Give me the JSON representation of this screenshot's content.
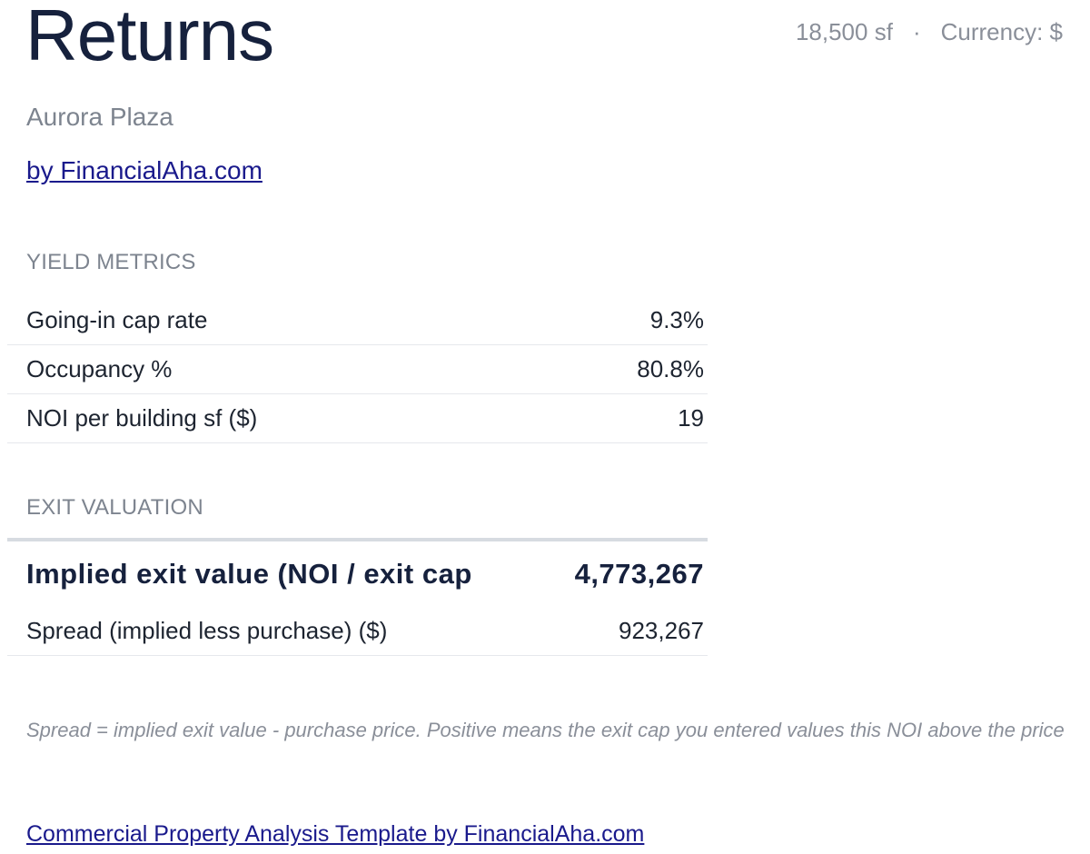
{
  "header": {
    "title": "Returns",
    "area": "18,500 sf",
    "separator": "·",
    "currency": "Currency: $"
  },
  "property": {
    "name": "Aurora Plaza"
  },
  "byline": "by FinancialAha.com",
  "yield_metrics": {
    "label": "YIELD METRICS",
    "rows": [
      {
        "label": "Going-in cap rate",
        "value": "9.3%"
      },
      {
        "label": "Occupancy %",
        "value": "80.8%"
      },
      {
        "label": "NOI per building sf ($)",
        "value": "19"
      }
    ]
  },
  "exit_valuation": {
    "label": "EXIT VALUATION",
    "highlight": {
      "label": "Implied exit value (NOI / exit cap",
      "value": "4,773,267"
    },
    "rows": [
      {
        "label": "Spread (implied less purchase) ($)",
        "value": "923,267"
      }
    ]
  },
  "footnote": "Spread = implied exit value - purchase price. Positive means the exit cap you entered values this NOI above the price",
  "footer_link": "Commercial Property Analysis Template by FinancialAha.com"
}
